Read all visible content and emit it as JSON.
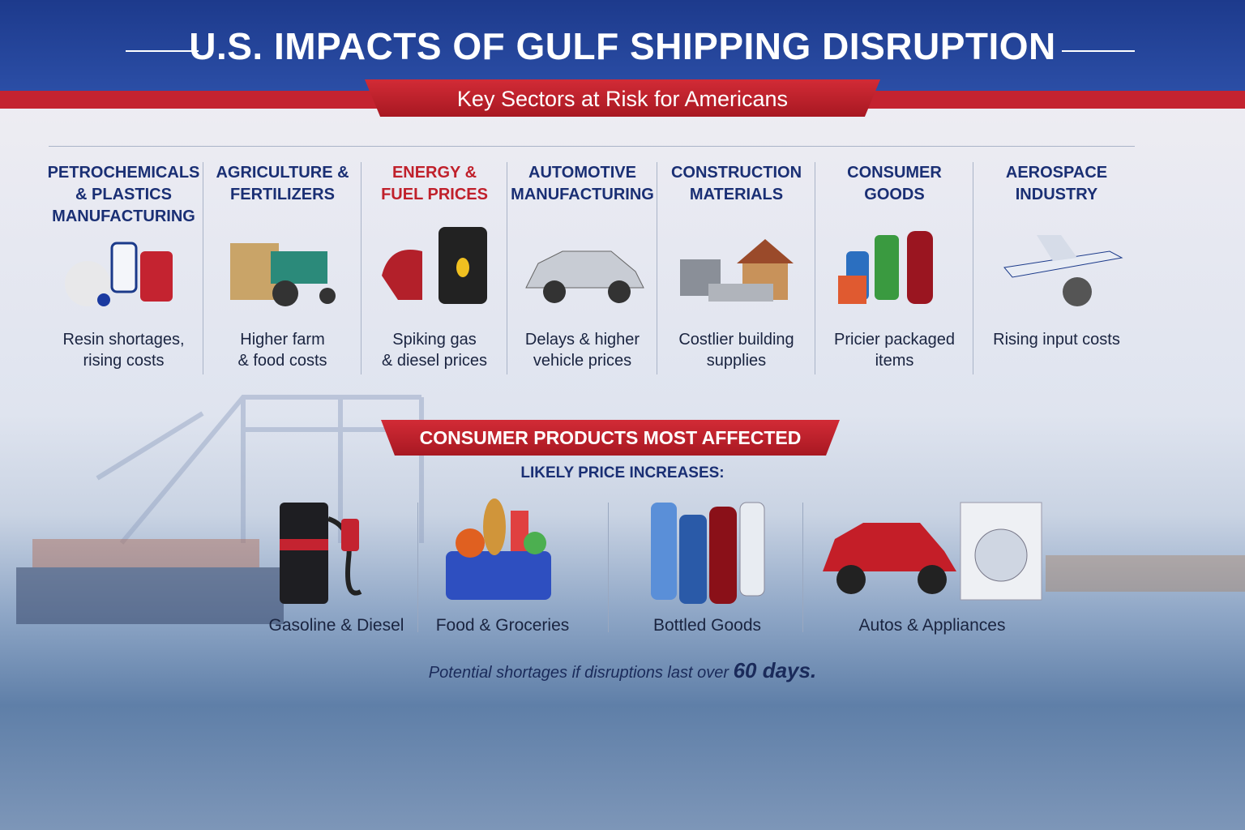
{
  "header": {
    "title": "U.S. IMPACTS OF GULF SHIPPING DISRUPTION",
    "subtitle": "Key Sectors at Risk for Americans"
  },
  "sectors": [
    {
      "title_lines": [
        "PETROCHEMICALS",
        "& PLASTICS",
        "MANUFACTURING"
      ],
      "caption_lines": [
        "Resin shortages,",
        "rising costs"
      ]
    },
    {
      "title_lines": [
        "AGRICULTURE &",
        "FERTILIZERS"
      ],
      "caption_lines": [
        "Higher farm",
        "& food costs"
      ]
    },
    {
      "title_lines": [
        "ENERGY &",
        "FUEL PRICES"
      ],
      "caption_lines": [
        "Spiking gas",
        "& diesel prices"
      ]
    },
    {
      "title_lines": [
        "AUTOMOTIVE",
        "MANUFACTURING"
      ],
      "caption_lines": [
        "Delays & higher",
        "vehicle prices"
      ]
    },
    {
      "title_lines": [
        "CONSTRUCTION",
        "MATERIALS"
      ],
      "caption_lines": [
        "Costlier building",
        "supplies"
      ]
    },
    {
      "title_lines": [
        "CONSUMER",
        "GOODS"
      ],
      "caption_lines": [
        "Pricier packaged",
        "items"
      ]
    },
    {
      "title_lines": [
        "AEROSPACE",
        "INDUSTRY"
      ],
      "caption_lines": [
        "Rising input costs"
      ]
    }
  ],
  "consumer": {
    "title": "CONSUMER PRODUCTS MOST AFFECTED",
    "subtitle": "LIKELY PRICE INCREASES:",
    "products": [
      "Gasoline & Diesel",
      "Food & Groceries",
      "Bottled Goods",
      "Autos & Appliances"
    ]
  },
  "footnote": {
    "text": "Potential shortages if disruptions last over",
    "emphasis": "60 days."
  }
}
